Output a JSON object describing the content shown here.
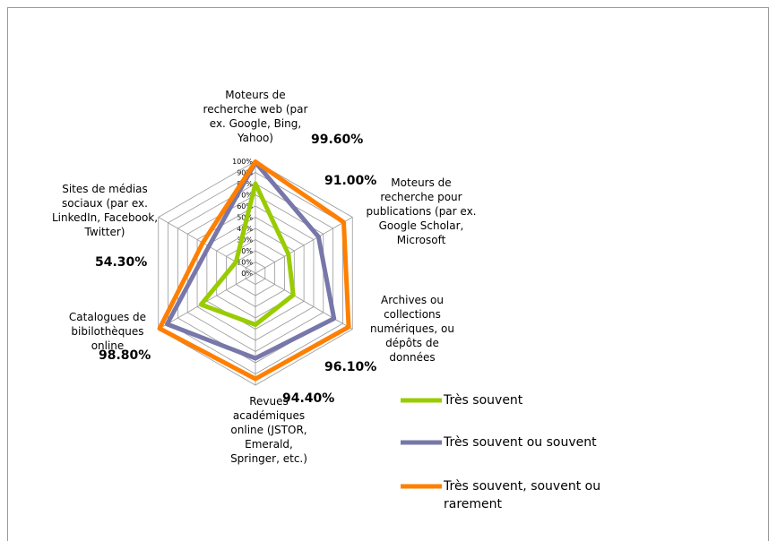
{
  "chart_data": {
    "type": "radar",
    "categories": [
      "Moteurs de recherche web (par ex. Google, Bing, Yahoo)",
      "Moteurs de recherche pour publications (par ex. Google Scholar, Microsoft",
      "Archives ou collections numériques, ou dépôts de données",
      "Revues académiques online (JSTOR, Emerald, Springer, etc.)",
      "Catalogues de bibilothèques online",
      "Sites de médias sociaux (par ex. LinkedIn, Facebook, Twitter)"
    ],
    "series": [
      {
        "name": "Très souvent",
        "color": "#99cc00",
        "values": [
          80,
          34,
          39,
          46,
          56,
          20
        ]
      },
      {
        "name": "Très souvent ou souvent",
        "color": "#7777aa",
        "values": [
          99,
          65,
          81,
          76,
          91,
          48
        ]
      },
      {
        "name": "Très souvent, souvent ou rarement",
        "color": "#ff7f00",
        "values": [
          99.6,
          91,
          96.1,
          94.4,
          98.8,
          54.3
        ],
        "value_labels": [
          "99.60%",
          "91.00%",
          "96.10%",
          "94.40%",
          "98.80%",
          "54.30%"
        ]
      }
    ],
    "rlim": [
      0,
      100
    ],
    "rticks": [
      {
        "value": 0,
        "label": "0%"
      },
      {
        "value": 10,
        "label": "10%"
      },
      {
        "value": 20,
        "label": "20%"
      },
      {
        "value": 30,
        "label": "30%"
      },
      {
        "value": 40,
        "label": "40%"
      },
      {
        "value": 50,
        "label": "50%"
      },
      {
        "value": 60,
        "label": "60%"
      },
      {
        "value": 70,
        "label": "70%"
      },
      {
        "value": 80,
        "label": "80%"
      },
      {
        "value": 90,
        "label": "90%"
      },
      {
        "value": 100,
        "label": "100%"
      }
    ],
    "grid": true
  }
}
